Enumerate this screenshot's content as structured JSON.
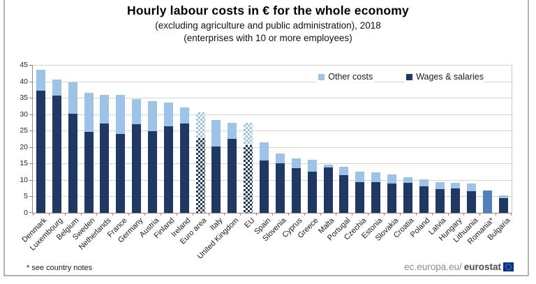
{
  "title": "Hourly labour costs in € for the whole economy",
  "subtitle_line1": "(excluding agriculture and public administration), 2018",
  "subtitle_line2": "(enterprises with 10 or more employees)",
  "footnote": "* see country notes",
  "source": {
    "prefix": "ec.europa.eu/",
    "bold": "eurostat"
  },
  "legend": [
    {
      "label": "Other costs",
      "color": "#9DC3E6"
    },
    {
      "label": "Wages & salaries",
      "color": "#1F3864"
    }
  ],
  "colors": {
    "wages": "#1F3864",
    "other_costs": "#9DC3E6",
    "romania_total_only": "#4F81BD",
    "gridline": "#D4D4D4",
    "axis": "#8C8C8C",
    "frame": "#B3B3B3",
    "eu_flag_blue": "#003399",
    "eu_flag_stars": "#FFCC00"
  },
  "chart_data": {
    "type": "bar",
    "stacked": true,
    "title": "Hourly labour costs in € for the whole economy",
    "xlabel": "",
    "ylabel": "",
    "ylim": [
      0,
      45
    ],
    "ytick_interval": 5,
    "yticks": [
      0,
      5,
      10,
      15,
      20,
      25,
      30,
      35,
      40,
      45
    ],
    "grid": true,
    "legend_position": "top-right-inside",
    "categories": [
      "Denmark",
      "Luxembourg",
      "Belgium",
      "Sweden",
      "Netherlands",
      "France",
      "Germany",
      "Austria",
      "Finland",
      "Ireland",
      "Euro area",
      "Italy",
      "United Kingdom",
      "EU",
      "Spain",
      "Slovenia",
      "Cyprus",
      "Greece",
      "Malta",
      "Portugal",
      "Czechia",
      "Estonia",
      "Slovakia",
      "Croatia",
      "Poland",
      "Latvia",
      "Hungary",
      "Lithuania",
      "Romania*",
      "Bulgaria"
    ],
    "series": [
      {
        "name": "Wages & salaries",
        "color": "#1F3864",
        "values": [
          37.2,
          35.6,
          30.1,
          24.6,
          27.2,
          23.9,
          26.9,
          24.8,
          26.4,
          27.1,
          22.8,
          20.1,
          22.4,
          20.6,
          15.9,
          15.1,
          13.5,
          12.6,
          13.9,
          11.5,
          9.4,
          9.4,
          8.9,
          9.2,
          8.0,
          7.3,
          7.4,
          6.5,
          null,
          4.5
        ]
      },
      {
        "name": "Other costs",
        "color": "#9DC3E6",
        "values": [
          6.3,
          5.0,
          9.6,
          12.0,
          8.7,
          11.9,
          7.7,
          9.2,
          7.2,
          4.9,
          7.8,
          8.1,
          5.0,
          6.8,
          5.5,
          3.0,
          3.0,
          3.5,
          0.8,
          2.6,
          3.2,
          3.0,
          2.7,
          1.7,
          2.1,
          2.0,
          1.8,
          2.5,
          null,
          0.9
        ]
      }
    ],
    "totals": [
      43.5,
      40.6,
      39.7,
      36.6,
      35.9,
      35.8,
      34.6,
      34.0,
      33.6,
      32.0,
      30.6,
      28.2,
      27.4,
      27.4,
      21.4,
      18.1,
      16.5,
      16.1,
      14.7,
      14.1,
      12.6,
      12.4,
      11.6,
      10.9,
      10.1,
      9.3,
      9.2,
      9.0,
      6.9,
      5.4
    ],
    "bar_styles": [
      {
        "index": 10,
        "category": "Euro area",
        "style": "checkered"
      },
      {
        "index": 13,
        "category": "EU",
        "style": "checkered"
      },
      {
        "index": 28,
        "category": "Romania*",
        "style": "total-only",
        "color": "#4F81BD"
      }
    ],
    "notes": "Romania* shown as a single total-only bar (see country notes); Euro area and EU bars use a checkered pattern"
  }
}
